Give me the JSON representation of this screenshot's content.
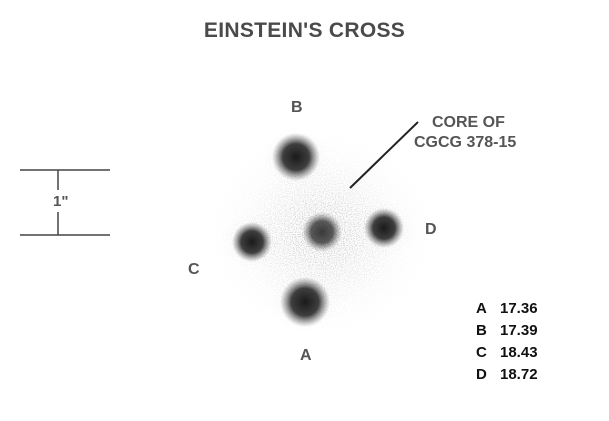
{
  "title": "EINSTEIN'S CROSS",
  "scale_label": "1\"",
  "core_label": [
    "CORE OF",
    "CGCG 378-15"
  ],
  "image_labels": {
    "A": "A",
    "B": "B",
    "C": "C",
    "D": "D"
  },
  "magnitudes": [
    {
      "key": "A",
      "value": "17.36"
    },
    {
      "key": "B",
      "value": "17.39"
    },
    {
      "key": "C",
      "value": "18.43"
    },
    {
      "key": "D",
      "value": "18.72"
    }
  ],
  "colors": {
    "text": "#555555",
    "ink": "#1a1a1a",
    "background": "#ffffff"
  }
}
